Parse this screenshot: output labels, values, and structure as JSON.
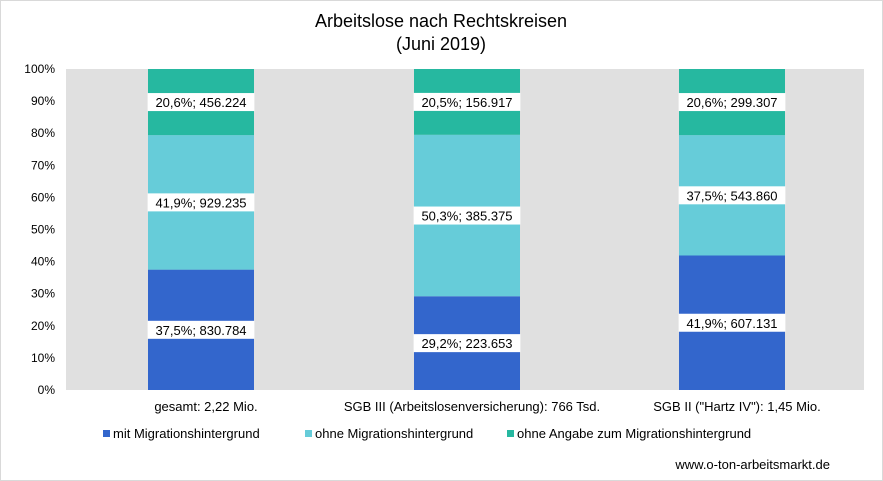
{
  "chart_data": {
    "type": "bar",
    "stacked": true,
    "normalized": true,
    "title": "Arbeitslose nach Rechtskreisen",
    "subtitle": "(Juni 2019)",
    "categories": [
      "gesamt: 2,22 Mio.",
      "SGB III (Arbeitslosenversicherung): 766 Tsd.",
      "SGB II (\"Hartz IV\"): 1,45 Mio."
    ],
    "series": [
      {
        "name": "mit Migrationshintergrund",
        "color": "#3366cc",
        "values": [
          37.5,
          29.2,
          41.9
        ],
        "labels": [
          "37,5%; 830.784",
          "29,2%; 223.653",
          "41,9%; 607.131"
        ]
      },
      {
        "name": "ohne Migrationshintergrund",
        "color": "#66ccd9",
        "values": [
          41.9,
          50.3,
          37.5
        ],
        "labels": [
          "41,9%; 929.235",
          "50,3%; 385.375",
          "37,5%; 543.860"
        ]
      },
      {
        "name": "ohne Angabe zum Migrationshintergrund",
        "color": "#26b8a0",
        "values": [
          20.6,
          20.5,
          20.6
        ],
        "labels": [
          "20,6%; 456.224",
          "20,5%; 156.917",
          "20,6%; 299.307"
        ]
      }
    ],
    "ylim": [
      0,
      100
    ],
    "yticks": [
      "0%",
      "10%",
      "20%",
      "30%",
      "40%",
      "50%",
      "60%",
      "70%",
      "80%",
      "90%",
      "100%"
    ],
    "grid": false,
    "plot_background": "#e0e0e0",
    "legend": "bottom"
  },
  "source": "www.o-ton-arbeitsmarkt.de"
}
